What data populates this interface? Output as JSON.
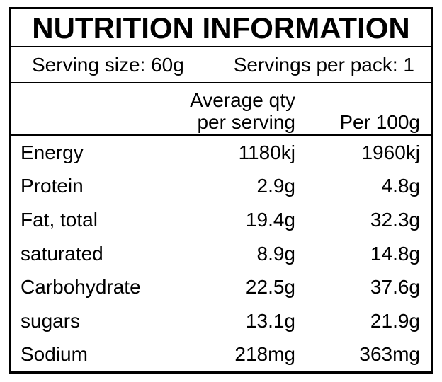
{
  "label": {
    "title": "NUTRITION INFORMATION",
    "serving_size": "Serving size: 60g",
    "servings_per_pack": "Servings per pack: 1",
    "columns": {
      "qty_line1": "Average qty",
      "qty_line2": "per serving",
      "per_100g": "Per 100g"
    },
    "rows": [
      {
        "nutrient": "Energy",
        "per_serving": "1180kj",
        "per_100g": "1960kj"
      },
      {
        "nutrient": "Protein",
        "per_serving": "2.9g",
        "per_100g": "4.8g"
      },
      {
        "nutrient": "Fat, total",
        "per_serving": "19.4g",
        "per_100g": "32.3g"
      },
      {
        "nutrient": "saturated",
        "per_serving": "8.9g",
        "per_100g": "14.8g"
      },
      {
        "nutrient": "Carbohydrate",
        "per_serving": "22.5g",
        "per_100g": "37.6g"
      },
      {
        "nutrient": "sugars",
        "per_serving": "13.1g",
        "per_100g": "21.9g"
      },
      {
        "nutrient": "Sodium",
        "per_serving": "218mg",
        "per_100g": "363mg"
      }
    ],
    "colors": {
      "border": "#000000",
      "text": "#000000",
      "background": "#ffffff"
    }
  }
}
